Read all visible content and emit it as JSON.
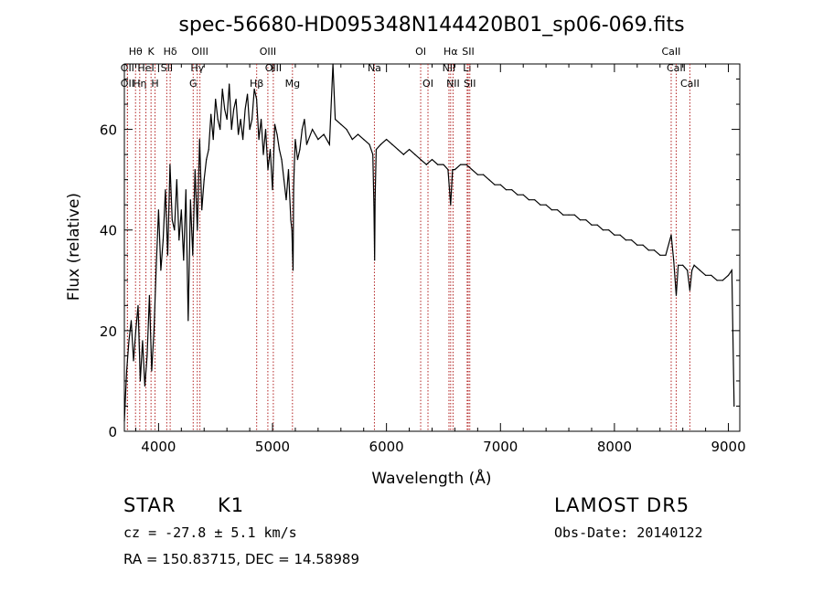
{
  "chart_data": {
    "type": "line",
    "title": "spec-56680-HD095348N144420B01_sp06-069.fits",
    "xlabel": "Wavelength (Å)",
    "ylabel": "Flux (relative)",
    "xlim": [
      3700,
      9100
    ],
    "ylim": [
      0,
      73
    ],
    "xticks": [
      4000,
      5000,
      6000,
      7000,
      8000,
      9000
    ],
    "yticks": [
      0,
      20,
      40,
      60
    ],
    "grid": false,
    "line_color": "#000000",
    "marker_color": "#b22222",
    "series": [
      {
        "x": [
          3700,
          3720,
          3740,
          3760,
          3780,
          3800,
          3820,
          3840,
          3860,
          3880,
          3900,
          3920,
          3940,
          3960,
          3980,
          4000,
          4020,
          4040,
          4060,
          4080,
          4100,
          4120,
          4140,
          4160,
          4180,
          4200,
          4220,
          4240,
          4260,
          4280,
          4300,
          4320,
          4340,
          4360,
          4380,
          4400,
          4420,
          4440,
          4460,
          4480,
          4500,
          4520,
          4540,
          4560,
          4580,
          4600,
          4620,
          4640,
          4660,
          4680,
          4700,
          4720,
          4740,
          4760,
          4780,
          4800,
          4820,
          4840,
          4860,
          4880,
          4900,
          4920,
          4940,
          4960,
          4980,
          5000,
          5020,
          5040,
          5060,
          5080,
          5100,
          5120,
          5140,
          5160,
          5170,
          5175,
          5180,
          5185,
          5190,
          5200,
          5220,
          5240,
          5260,
          5280,
          5300,
          5350,
          5400,
          5450,
          5500,
          5530,
          5550,
          5600,
          5650,
          5700,
          5750,
          5800,
          5850,
          5880,
          5890,
          5896,
          5900,
          5910,
          5950,
          6000,
          6050,
          6100,
          6150,
          6200,
          6250,
          6300,
          6350,
          6400,
          6450,
          6500,
          6540,
          6563,
          6580,
          6600,
          6650,
          6700,
          6750,
          6800,
          6850,
          6900,
          6950,
          7000,
          7050,
          7100,
          7150,
          7200,
          7250,
          7300,
          7350,
          7400,
          7450,
          7500,
          7550,
          7600,
          7650,
          7700,
          7750,
          7800,
          7850,
          7900,
          7950,
          8000,
          8050,
          8100,
          8150,
          8200,
          8250,
          8300,
          8350,
          8400,
          8450,
          8498,
          8520,
          8542,
          8560,
          8600,
          8640,
          8662,
          8680,
          8700,
          8750,
          8800,
          8850,
          8900,
          8950,
          9000,
          9030,
          9050
        ],
        "y": [
          2,
          12,
          18,
          22,
          14,
          20,
          25,
          10,
          18,
          9,
          15,
          27,
          12,
          20,
          33,
          44,
          32,
          38,
          48,
          35,
          53,
          42,
          40,
          50,
          38,
          44,
          34,
          48,
          22,
          46,
          35,
          52,
          40,
          58,
          44,
          50,
          54,
          56,
          63,
          58,
          66,
          62,
          60,
          68,
          64,
          62,
          69,
          60,
          64,
          66,
          59,
          62,
          58,
          64,
          67,
          60,
          62,
          68,
          66,
          58,
          62,
          55,
          60,
          52,
          56,
          48,
          61,
          59,
          56,
          54,
          50,
          46,
          52,
          42,
          40,
          36,
          32,
          48,
          52,
          58,
          54,
          56,
          60,
          62,
          57,
          60,
          58,
          59,
          57,
          73,
          62,
          61,
          60,
          58,
          59,
          58,
          57,
          55,
          45,
          34,
          46,
          56,
          57,
          58,
          57,
          56,
          55,
          56,
          55,
          54,
          53,
          54,
          53,
          53,
          52,
          45,
          52,
          52,
          53,
          53,
          52,
          51,
          51,
          50,
          49,
          49,
          48,
          48,
          47,
          47,
          46,
          46,
          45,
          45,
          44,
          44,
          43,
          43,
          43,
          42,
          42,
          41,
          41,
          40,
          40,
          39,
          39,
          38,
          38,
          37,
          37,
          36,
          36,
          35,
          35,
          39,
          34,
          27,
          33,
          33,
          32,
          28,
          32,
          33,
          32,
          31,
          31,
          30,
          30,
          31,
          32,
          5
        ]
      }
    ],
    "lines": [
      {
        "label": "Hθ",
        "wl": 3798,
        "row": 1
      },
      {
        "label": "OII",
        "wl": 3727,
        "row": 2
      },
      {
        "label": "OII",
        "wl": 3727,
        "row": 3
      },
      {
        "label": "Hη",
        "wl": 3835,
        "row": 3
      },
      {
        "label": "HeI",
        "wl": 3889,
        "row": 2
      },
      {
        "label": "K",
        "wl": 3934,
        "row": 1
      },
      {
        "label": "H",
        "wl": 3969,
        "row": 3
      },
      {
        "label": "Hδ",
        "wl": 4102,
        "row": 1
      },
      {
        "label": "SII",
        "wl": 4072,
        "row": 2
      },
      {
        "label": "OIII",
        "wl": 4363,
        "row": 1
      },
      {
        "label": "Hγ",
        "wl": 4340,
        "row": 2
      },
      {
        "label": "G",
        "wl": 4304,
        "row": 3
      },
      {
        "label": "Hβ",
        "wl": 4861,
        "row": 3
      },
      {
        "label": "OIII",
        "wl": 4959,
        "row": 1
      },
      {
        "label": "OIII",
        "wl": 5007,
        "row": 2
      },
      {
        "label": "Mg",
        "wl": 5175,
        "row": 3
      },
      {
        "label": "Na",
        "wl": 5894,
        "row": 2
      },
      {
        "label": "OI",
        "wl": 6300,
        "row": 1
      },
      {
        "label": "OI",
        "wl": 6364,
        "row": 3
      },
      {
        "label": "Hα",
        "wl": 6563,
        "row": 1
      },
      {
        "label": "NII",
        "wl": 6548,
        "row": 2
      },
      {
        "label": "NII",
        "wl": 6584,
        "row": 3
      },
      {
        "label": "SII",
        "wl": 6717,
        "row": 1
      },
      {
        "label": "Li",
        "wl": 6708,
        "row": 2
      },
      {
        "label": "SII",
        "wl": 6731,
        "row": 3
      },
      {
        "label": "CaII",
        "wl": 8498,
        "row": 1
      },
      {
        "label": "CaII",
        "wl": 8542,
        "row": 2
      },
      {
        "label": "CaII",
        "wl": 8662,
        "row": 3
      }
    ]
  },
  "info": {
    "object_class": "STAR",
    "subclass": "K1",
    "survey": "LAMOST DR5",
    "cz": "cz = -27.8 ± 5.1 km/s",
    "obs_date": "Obs-Date: 20140122",
    "coords": "RA = 150.83715, DEC =  14.58989"
  }
}
